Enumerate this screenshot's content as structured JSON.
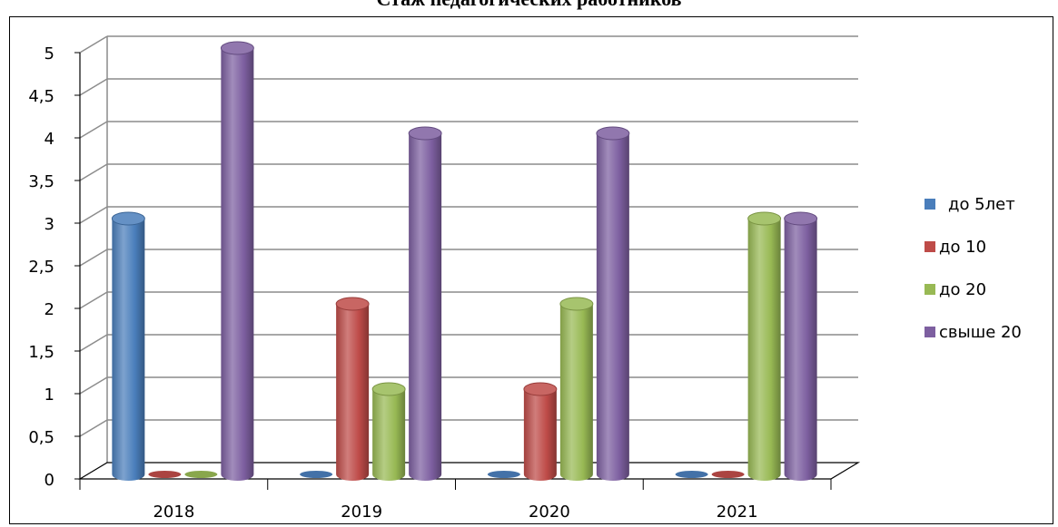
{
  "chart_data": {
    "type": "bar",
    "title": "Стаж педагогических работников",
    "xlabel": "",
    "ylabel": "",
    "categories": [
      "2018",
      "2019",
      "2020",
      "2021"
    ],
    "series": [
      {
        "name": "до 5лет",
        "values": [
          3,
          0,
          0,
          0
        ],
        "color": "#4a7ebb"
      },
      {
        "name": "до 10",
        "values": [
          0,
          2,
          1,
          0
        ],
        "color": "#be4b48"
      },
      {
        "name": "до 20",
        "values": [
          0,
          1,
          2,
          3
        ],
        "color": "#98b954"
      },
      {
        "name": "свыше 20",
        "values": [
          5,
          4,
          4,
          3
        ],
        "color": "#7d5fa0"
      }
    ],
    "ylim": [
      0,
      5
    ],
    "yticks": [
      "0",
      "0,5",
      "1",
      "1,5",
      "2",
      "2,5",
      "3",
      "3,5",
      "4",
      "4,5",
      "5"
    ],
    "grid": true,
    "legend_position": "right"
  }
}
